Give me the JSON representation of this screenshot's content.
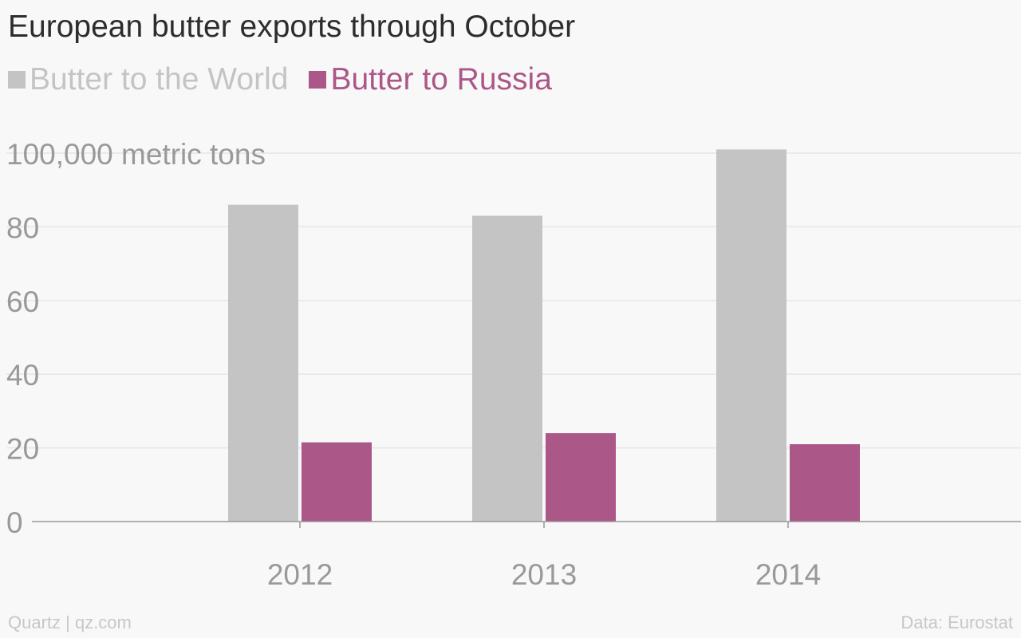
{
  "chart_data": {
    "type": "bar",
    "title": "European butter exports through October",
    "ylabel": "100,000 metric tons",
    "categories": [
      "2012",
      "2013",
      "2014"
    ],
    "series": [
      {
        "name": "Butter to the World",
        "color": "#c4c4c4",
        "values": [
          86,
          83,
          101
        ]
      },
      {
        "name": "Butter to Russia",
        "color": "#ab5787",
        "values": [
          21.5,
          24,
          21
        ]
      }
    ],
    "y_ticks": [
      "0",
      "20",
      "40",
      "60",
      "80"
    ],
    "ylim": [
      0,
      100
    ],
    "grid": true,
    "legend_position": "top-left"
  },
  "footer": {
    "source_left": "Quartz | qz.com",
    "source_right": "Data: Eurostat"
  }
}
